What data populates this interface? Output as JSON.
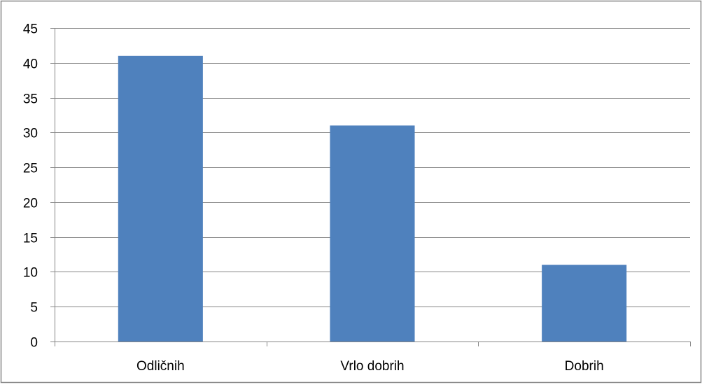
{
  "chart_data": {
    "type": "bar",
    "title": "",
    "xlabel": "",
    "ylabel": "",
    "categories": [
      "Odličnih",
      "Vrlo dobrih",
      "Dobrih"
    ],
    "values": [
      41,
      31,
      11
    ],
    "ylim": [
      0,
      45
    ],
    "yticks": [
      0,
      5,
      10,
      15,
      20,
      25,
      30,
      35,
      40,
      45
    ],
    "grid": true,
    "legend": "none",
    "bar_color": "#4F81BD",
    "grid_color": "#868686",
    "border_color": "#868686"
  }
}
